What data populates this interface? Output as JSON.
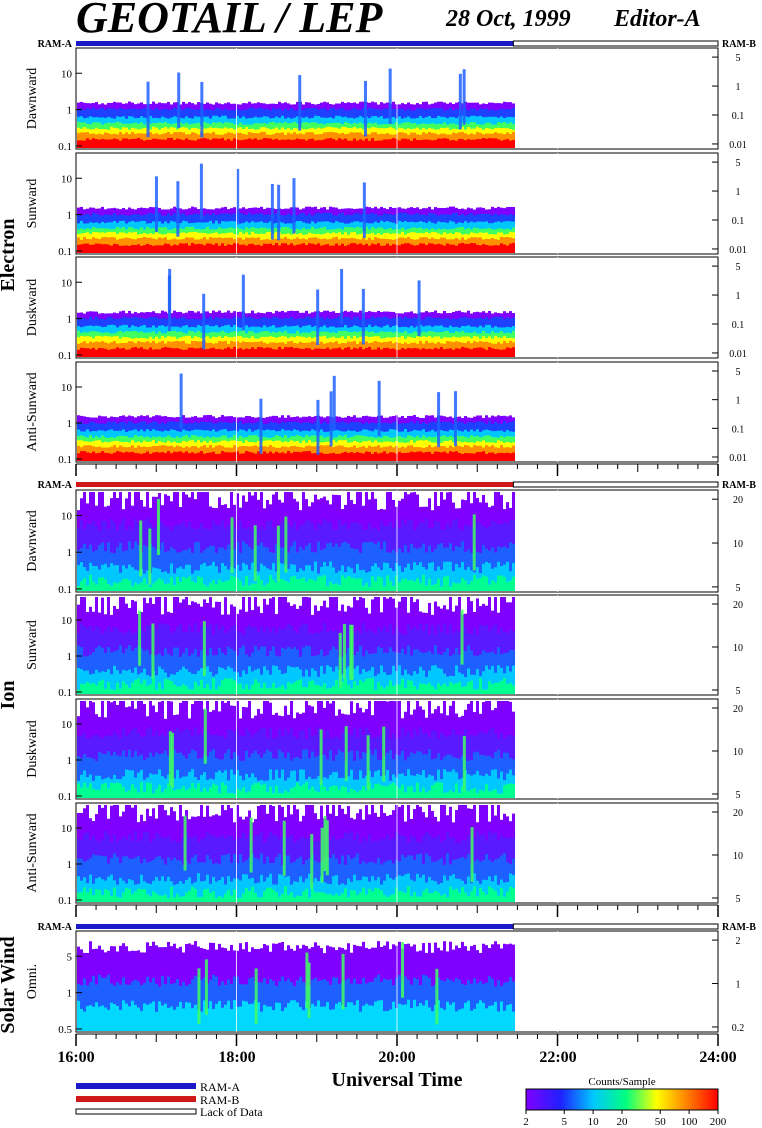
{
  "header": {
    "title": "GEOTAIL / LEP",
    "date": "28 Oct, 1999",
    "editor": "Editor-A"
  },
  "chart_data": {
    "type": "heatmap",
    "xlabel": "Universal Time",
    "xlim_hours": [
      16,
      24
    ],
    "x_ticks": [
      "16:00",
      "18:00",
      "20:00",
      "22:00",
      "24:00"
    ],
    "data_end_hour": 21.45,
    "ram_labels": {
      "left": "RAM-A",
      "right": "RAM-B"
    },
    "groups": [
      {
        "name": "Electron",
        "ram_bar_color": "#1a1ac8",
        "panels": [
          {
            "label": "Dawnward",
            "left_ticks": [
              "10",
              "1",
              "0.1"
            ],
            "right_ticks": [
              "5",
              "1",
              "0.1",
              "0.01"
            ]
          },
          {
            "label": "Sunward",
            "left_ticks": [
              "10",
              "1",
              "0.1"
            ],
            "right_ticks": [
              "5",
              "1",
              "0.1",
              "0.01"
            ]
          },
          {
            "label": "Duskward",
            "left_ticks": [
              "10",
              "1",
              "0.1"
            ],
            "right_ticks": [
              "5",
              "1",
              "0.1",
              "0.01"
            ]
          },
          {
            "label": "Anti-Sunward",
            "left_ticks": [
              "10",
              "1",
              "0.1"
            ],
            "right_ticks": [
              "5",
              "1",
              "0.1",
              "0.01"
            ]
          }
        ]
      },
      {
        "name": "Ion",
        "ram_bar_color": "#d01818",
        "panels": [
          {
            "label": "Dawnward",
            "left_ticks": [
              "10",
              "1",
              "0.1"
            ],
            "right_ticks": [
              "20",
              "10",
              "5"
            ]
          },
          {
            "label": "Sunward",
            "left_ticks": [
              "10",
              "1",
              "0.1"
            ],
            "right_ticks": [
              "20",
              "10",
              "5"
            ]
          },
          {
            "label": "Duskward",
            "left_ticks": [
              "10",
              "1",
              "0.1"
            ],
            "right_ticks": [
              "20",
              "10",
              "5"
            ]
          },
          {
            "label": "Anti-Sunward",
            "left_ticks": [
              "10",
              "1",
              "0.1"
            ],
            "right_ticks": [
              "20",
              "10",
              "5"
            ]
          }
        ]
      },
      {
        "name": "Solar Wind",
        "ram_bar_color": "#1a1ac8",
        "panels": [
          {
            "label": "Omni.",
            "left_ticks": [
              "5",
              "1",
              "0.5"
            ],
            "right_ticks": [
              "2",
              "1",
              "0.2"
            ]
          }
        ]
      }
    ],
    "legend": [
      {
        "label": "RAM-A",
        "color": "#1a1ac8"
      },
      {
        "label": "RAM-B",
        "color": "#d01818"
      },
      {
        "label": "Lack of Data",
        "color": "#ffffff"
      }
    ],
    "colorbar": {
      "title": "Counts/Sample",
      "ticks": [
        "2",
        "5",
        "10",
        "20",
        "50",
        "100",
        "200"
      ],
      "colors": [
        "#7f00ff",
        "#2020ff",
        "#00c8ff",
        "#00ff80",
        "#ffff00",
        "#ff8000",
        "#ff0000"
      ]
    }
  }
}
